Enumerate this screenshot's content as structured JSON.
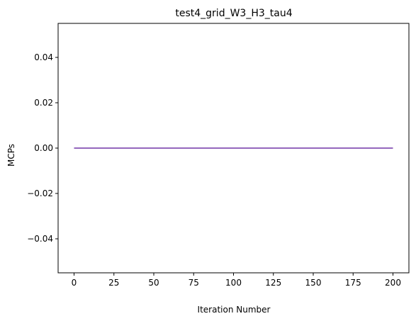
{
  "chart_data": {
    "type": "line",
    "title": "test4_grid_W3_H3_tau4",
    "xlabel": "Iteration Number",
    "ylabel": "MCPs",
    "xlim": [
      -10,
      210
    ],
    "ylim": [
      -0.055,
      0.055
    ],
    "xticks": [
      0,
      25,
      50,
      75,
      100,
      125,
      150,
      175,
      200
    ],
    "yticks": [
      -0.04,
      -0.02,
      0.0,
      0.02,
      0.04
    ],
    "ytick_labels": [
      "−0.04",
      "−0.02",
      "0.00",
      "0.02",
      "0.04"
    ],
    "grid": false,
    "legend": null,
    "series": [
      {
        "x": [
          0,
          200
        ],
        "y": [
          0.0,
          0.0
        ],
        "color": "#9467bd"
      }
    ]
  }
}
